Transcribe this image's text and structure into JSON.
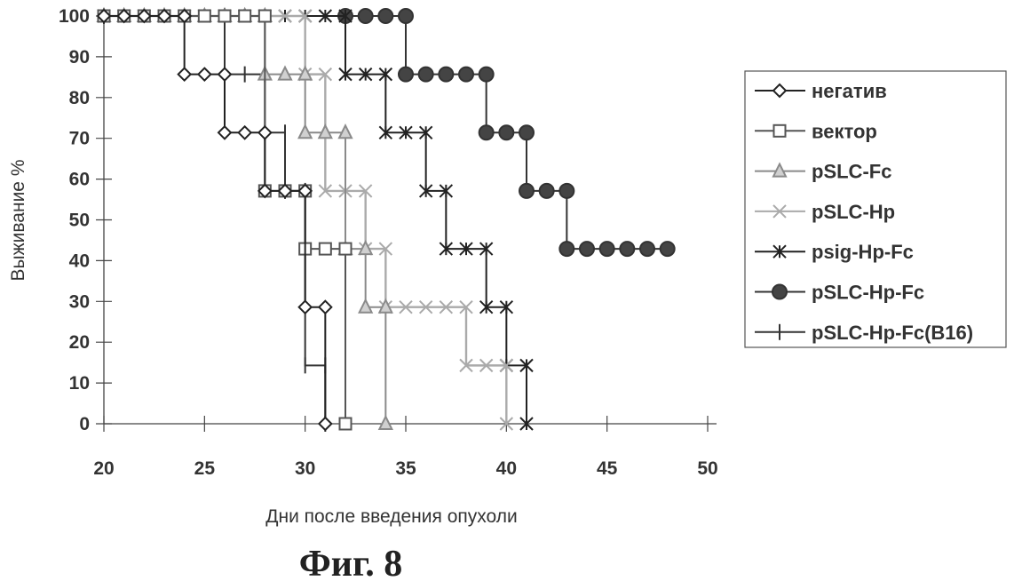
{
  "chart_data": {
    "type": "line",
    "title": "",
    "caption": "Фиг. 8",
    "xlabel": "Дни после введения опухоли",
    "ylabel": "Выживание %",
    "xlim": [
      20,
      50
    ],
    "ylim": [
      0,
      100
    ],
    "xticks": [
      20,
      25,
      30,
      35,
      40,
      45,
      50
    ],
    "yticks": [
      0,
      10,
      20,
      30,
      40,
      50,
      60,
      70,
      80,
      90,
      100
    ],
    "legend_position": "right",
    "series": [
      {
        "name": "негатив",
        "marker": "diamond",
        "color": "#222222",
        "fill": "#ffffff",
        "points": [
          [
            20,
            100
          ],
          [
            21,
            100
          ],
          [
            22,
            100
          ],
          [
            23,
            100
          ],
          [
            24,
            100
          ],
          [
            24,
            85.7
          ],
          [
            25,
            85.7
          ],
          [
            26,
            85.7
          ],
          [
            26,
            71.4
          ],
          [
            27,
            71.4
          ],
          [
            28,
            71.4
          ],
          [
            28,
            57.1
          ],
          [
            29,
            57.1
          ],
          [
            30,
            57.1
          ],
          [
            30,
            28.6
          ],
          [
            31,
            28.6
          ],
          [
            31,
            0
          ]
        ]
      },
      {
        "name": "вектор",
        "marker": "square",
        "color": "#555555",
        "fill": "#ffffff",
        "points": [
          [
            20,
            100
          ],
          [
            21,
            100
          ],
          [
            22,
            100
          ],
          [
            23,
            100
          ],
          [
            24,
            100
          ],
          [
            25,
            100
          ],
          [
            26,
            100
          ],
          [
            27,
            100
          ],
          [
            28,
            100
          ],
          [
            28,
            57.1
          ],
          [
            29,
            57.1
          ],
          [
            30,
            57.1
          ],
          [
            30,
            42.9
          ],
          [
            31,
            42.9
          ],
          [
            32,
            42.9
          ],
          [
            32,
            0
          ]
        ]
      },
      {
        "name": "pSLC-Fc",
        "marker": "triangle",
        "color": "#8a8a8a",
        "fill": "#d0d0d0",
        "points": [
          [
            20,
            100
          ],
          [
            21,
            100
          ],
          [
            22,
            100
          ],
          [
            23,
            100
          ],
          [
            24,
            100
          ],
          [
            25,
            100
          ],
          [
            26,
            100
          ],
          [
            27,
            100
          ],
          [
            28,
            100
          ],
          [
            28,
            85.7
          ],
          [
            29,
            85.7
          ],
          [
            30,
            85.7
          ],
          [
            30,
            71.4
          ],
          [
            31,
            71.4
          ],
          [
            32,
            71.4
          ],
          [
            32,
            42.9
          ],
          [
            33,
            42.9
          ],
          [
            33,
            28.6
          ],
          [
            34,
            28.6
          ],
          [
            34,
            0
          ]
        ]
      },
      {
        "name": "pSLC-Hp",
        "marker": "x",
        "color": "#aaaaaa",
        "fill": "none",
        "points": [
          [
            20,
            100
          ],
          [
            21,
            100
          ],
          [
            22,
            100
          ],
          [
            23,
            100
          ],
          [
            24,
            100
          ],
          [
            25,
            100
          ],
          [
            26,
            100
          ],
          [
            27,
            100
          ],
          [
            28,
            100
          ],
          [
            29,
            100
          ],
          [
            30,
            100
          ],
          [
            30,
            85.7
          ],
          [
            31,
            85.7
          ],
          [
            31,
            57.1
          ],
          [
            32,
            57.1
          ],
          [
            33,
            57.1
          ],
          [
            33,
            42.9
          ],
          [
            34,
            42.9
          ],
          [
            34,
            28.6
          ],
          [
            35,
            28.6
          ],
          [
            36,
            28.6
          ],
          [
            37,
            28.6
          ],
          [
            38,
            28.6
          ],
          [
            38,
            14.3
          ],
          [
            39,
            14.3
          ],
          [
            40,
            14.3
          ],
          [
            40,
            0
          ]
        ]
      },
      {
        "name": "psig-Hp-Fc",
        "marker": "star",
        "color": "#222222",
        "fill": "none",
        "points": [
          [
            20,
            100
          ],
          [
            21,
            100
          ],
          [
            22,
            100
          ],
          [
            23,
            100
          ],
          [
            24,
            100
          ],
          [
            25,
            100
          ],
          [
            26,
            100
          ],
          [
            27,
            100
          ],
          [
            28,
            100
          ],
          [
            29,
            100
          ],
          [
            30,
            100
          ],
          [
            31,
            100
          ],
          [
            32,
            100
          ],
          [
            32,
            85.7
          ],
          [
            33,
            85.7
          ],
          [
            34,
            85.7
          ],
          [
            34,
            71.4
          ],
          [
            35,
            71.4
          ],
          [
            36,
            71.4
          ],
          [
            36,
            57.1
          ],
          [
            37,
            57.1
          ],
          [
            37,
            42.9
          ],
          [
            38,
            42.9
          ],
          [
            39,
            42.9
          ],
          [
            39,
            28.6
          ],
          [
            40,
            28.6
          ],
          [
            40,
            14.3
          ],
          [
            41,
            14.3
          ],
          [
            41,
            0
          ]
        ]
      },
      {
        "name": "pSLC-Hp-Fc",
        "marker": "circle",
        "color": "#333333",
        "fill": "#444444",
        "points": [
          [
            32,
            100
          ],
          [
            33,
            100
          ],
          [
            34,
            100
          ],
          [
            35,
            100
          ],
          [
            35,
            85.7
          ],
          [
            36,
            85.7
          ],
          [
            37,
            85.7
          ],
          [
            38,
            85.7
          ],
          [
            39,
            85.7
          ],
          [
            39,
            71.4
          ],
          [
            40,
            71.4
          ],
          [
            41,
            71.4
          ],
          [
            41,
            57.1
          ],
          [
            42,
            57.1
          ],
          [
            43,
            57.1
          ],
          [
            43,
            42.9
          ],
          [
            44,
            42.9
          ],
          [
            45,
            42.9
          ],
          [
            46,
            42.9
          ],
          [
            47,
            42.9
          ],
          [
            48,
            42.9
          ]
        ]
      },
      {
        "name": "pSLC-Hp-Fc(B16)",
        "marker": "plus",
        "color": "#333333",
        "fill": "none",
        "points": [
          [
            20,
            100
          ],
          [
            26,
            100
          ],
          [
            26,
            85.7
          ],
          [
            27,
            85.7
          ],
          [
            28,
            85.7
          ],
          [
            28,
            71.4
          ],
          [
            29,
            71.4
          ],
          [
            29,
            57.1
          ],
          [
            30,
            57.1
          ],
          [
            30,
            14.3
          ],
          [
            31,
            14.3
          ],
          [
            31,
            0
          ]
        ]
      }
    ]
  }
}
